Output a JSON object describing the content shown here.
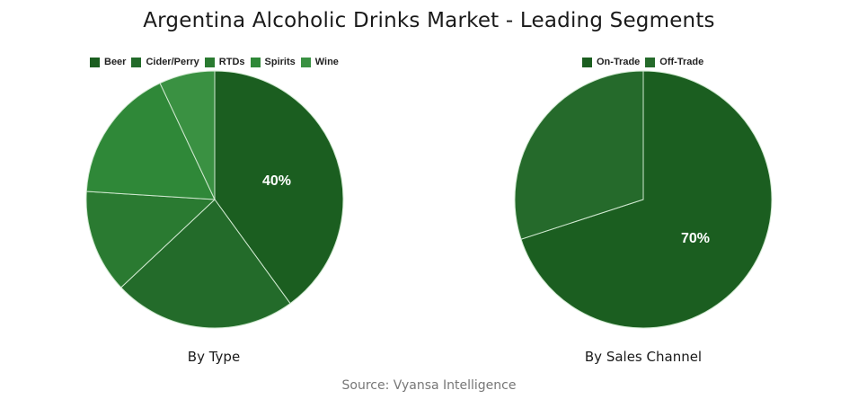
{
  "title": "Argentina Alcoholic Drinks Market - Leading Segments",
  "source": "Source: Vyansa Intelligence",
  "chart_data": [
    {
      "type": "pie",
      "title": "By Type",
      "categories": [
        "Beer",
        "Cider/Perry",
        "RTDs",
        "Spirits",
        "Wine"
      ],
      "values": [
        40,
        23,
        13,
        17,
        7
      ],
      "colors": [
        "#1b5e20",
        "#236b2a",
        "#2a7a31",
        "#2f8838",
        "#3a9142"
      ],
      "data_labels": [
        {
          "category": "Beer",
          "label": "40%"
        }
      ],
      "legend_position": "top"
    },
    {
      "type": "pie",
      "title": "By Sales Channel",
      "categories": [
        "On-Trade",
        "Off-Trade"
      ],
      "values": [
        70,
        30
      ],
      "colors": [
        "#1b5e20",
        "#256a2b"
      ],
      "data_labels": [
        {
          "category": "On-Trade",
          "label": "70%"
        }
      ],
      "legend_position": "top"
    }
  ],
  "left": {
    "subtitle": "By Type",
    "legend": [
      "Beer",
      "Cider/Perry",
      "RTDs",
      "Spirits",
      "Wine"
    ],
    "label": "40%"
  },
  "right": {
    "subtitle": "By Sales Channel",
    "legend": [
      "On-Trade",
      "Off-Trade"
    ],
    "label": "70%"
  }
}
